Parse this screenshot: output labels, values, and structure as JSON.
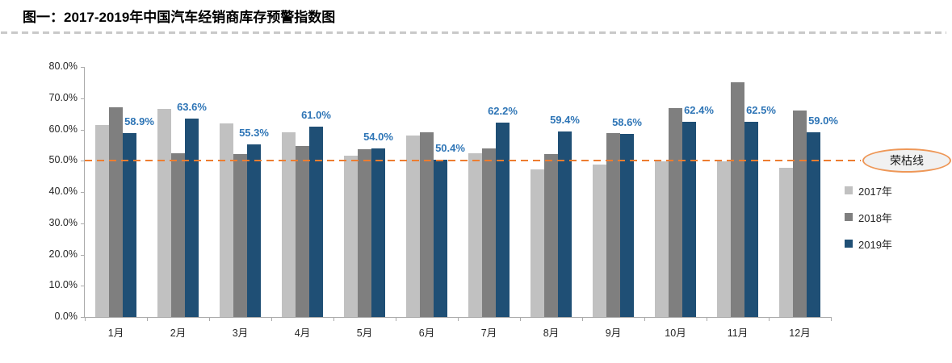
{
  "title": "图一：2017-2019年中国汽车经销商库存预警指数图",
  "chart_data": {
    "type": "bar",
    "title": "图一：2017-2019年中国汽车经销商库存预警指数图",
    "categories": [
      "1月",
      "2月",
      "3月",
      "4月",
      "5月",
      "6月",
      "7月",
      "8月",
      "9月",
      "10月",
      "11月",
      "12月"
    ],
    "series": [
      {
        "name": "2017年",
        "color": "#c1c1c1",
        "values": [
          61.5,
          66.6,
          61.9,
          59.0,
          51.7,
          58.2,
          52.4,
          47.2,
          48.7,
          49.9,
          49.7,
          47.7
        ]
      },
      {
        "name": "2018年",
        "color": "#7f7f7f",
        "values": [
          67.2,
          52.3,
          52.1,
          54.6,
          53.7,
          59.2,
          53.9,
          52.2,
          58.9,
          66.9,
          75.1,
          66.1
        ]
      },
      {
        "name": "2019年",
        "color": "#1f4f75",
        "values": [
          58.9,
          63.6,
          55.3,
          61.0,
          54.0,
          50.4,
          62.2,
          59.4,
          58.6,
          62.4,
          62.5,
          59.0
        ],
        "data_labels": [
          "58.9%",
          "63.6%",
          "55.3%",
          "61.0%",
          "54.0%",
          "50.4%",
          "62.2%",
          "59.4%",
          "58.6%",
          "62.4%",
          "62.5%",
          "59.0%"
        ],
        "data_label_color": "#2e75b6"
      }
    ],
    "ylim": [
      0,
      80
    ],
    "ytick_labels": [
      "80.0%",
      "70.0%",
      "60.0%",
      "50.0%",
      "40.0%",
      "30.0%",
      "20.0%",
      "10.0%",
      "0.0%"
    ],
    "grid": false,
    "legend_position": "right",
    "reference_line": {
      "value": 50,
      "label": "荣枯线",
      "line_color": "#ed7d31"
    }
  }
}
